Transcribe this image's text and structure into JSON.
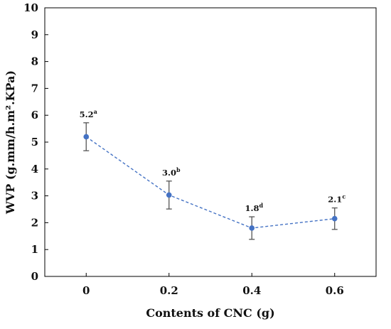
{
  "chart_data": {
    "type": "line",
    "title": "",
    "xlabel": "Contents of CNC (g)",
    "ylabel": "WVP (g.mm/h.m².KPa)",
    "x_ticks": [
      "0",
      "0.2",
      "0.4",
      "0.6"
    ],
    "y_ticks": [
      "0",
      "1",
      "2",
      "3",
      "4",
      "5",
      "6",
      "7",
      "8",
      "9",
      "10"
    ],
    "xlim": [
      -0.1,
      0.7
    ],
    "ylim": [
      0,
      10
    ],
    "grid": false,
    "legend": "none",
    "series": [
      {
        "x": [
          0,
          0.2,
          0.4,
          0.6
        ],
        "y": [
          5.2,
          3.03,
          1.8,
          2.15
        ],
        "error": [
          0.52,
          0.52,
          0.42,
          0.4
        ],
        "labels": [
          {
            "value": "5.2",
            "sup": "a"
          },
          {
            "value": "3.0",
            "sup": "b"
          },
          {
            "value": "1.8",
            "sup": "d"
          },
          {
            "value": "2.1",
            "sup": "c"
          }
        ],
        "style": "dashed",
        "color": "#4472c4",
        "errorbar_color": "#555555"
      }
    ]
  }
}
